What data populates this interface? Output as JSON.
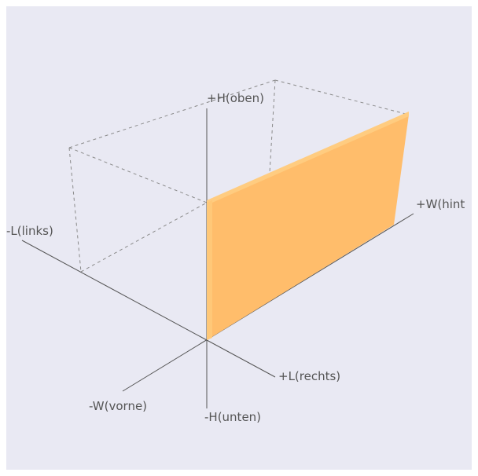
{
  "axes": {
    "plus_h": "+H(oben)",
    "minus_h": "-H(unten)",
    "minus_l": "-L(links)",
    "plus_l": "+L(rechts)",
    "plus_w": "+W(hint",
    "minus_w": "-W(vorne)"
  },
  "colors": {
    "background": "#e9e9f3",
    "axis": "#555555",
    "guide_dashed": "#8a8a8a",
    "panel_fill": "#ffbd6b",
    "panel_edge": "#ffcc80"
  }
}
